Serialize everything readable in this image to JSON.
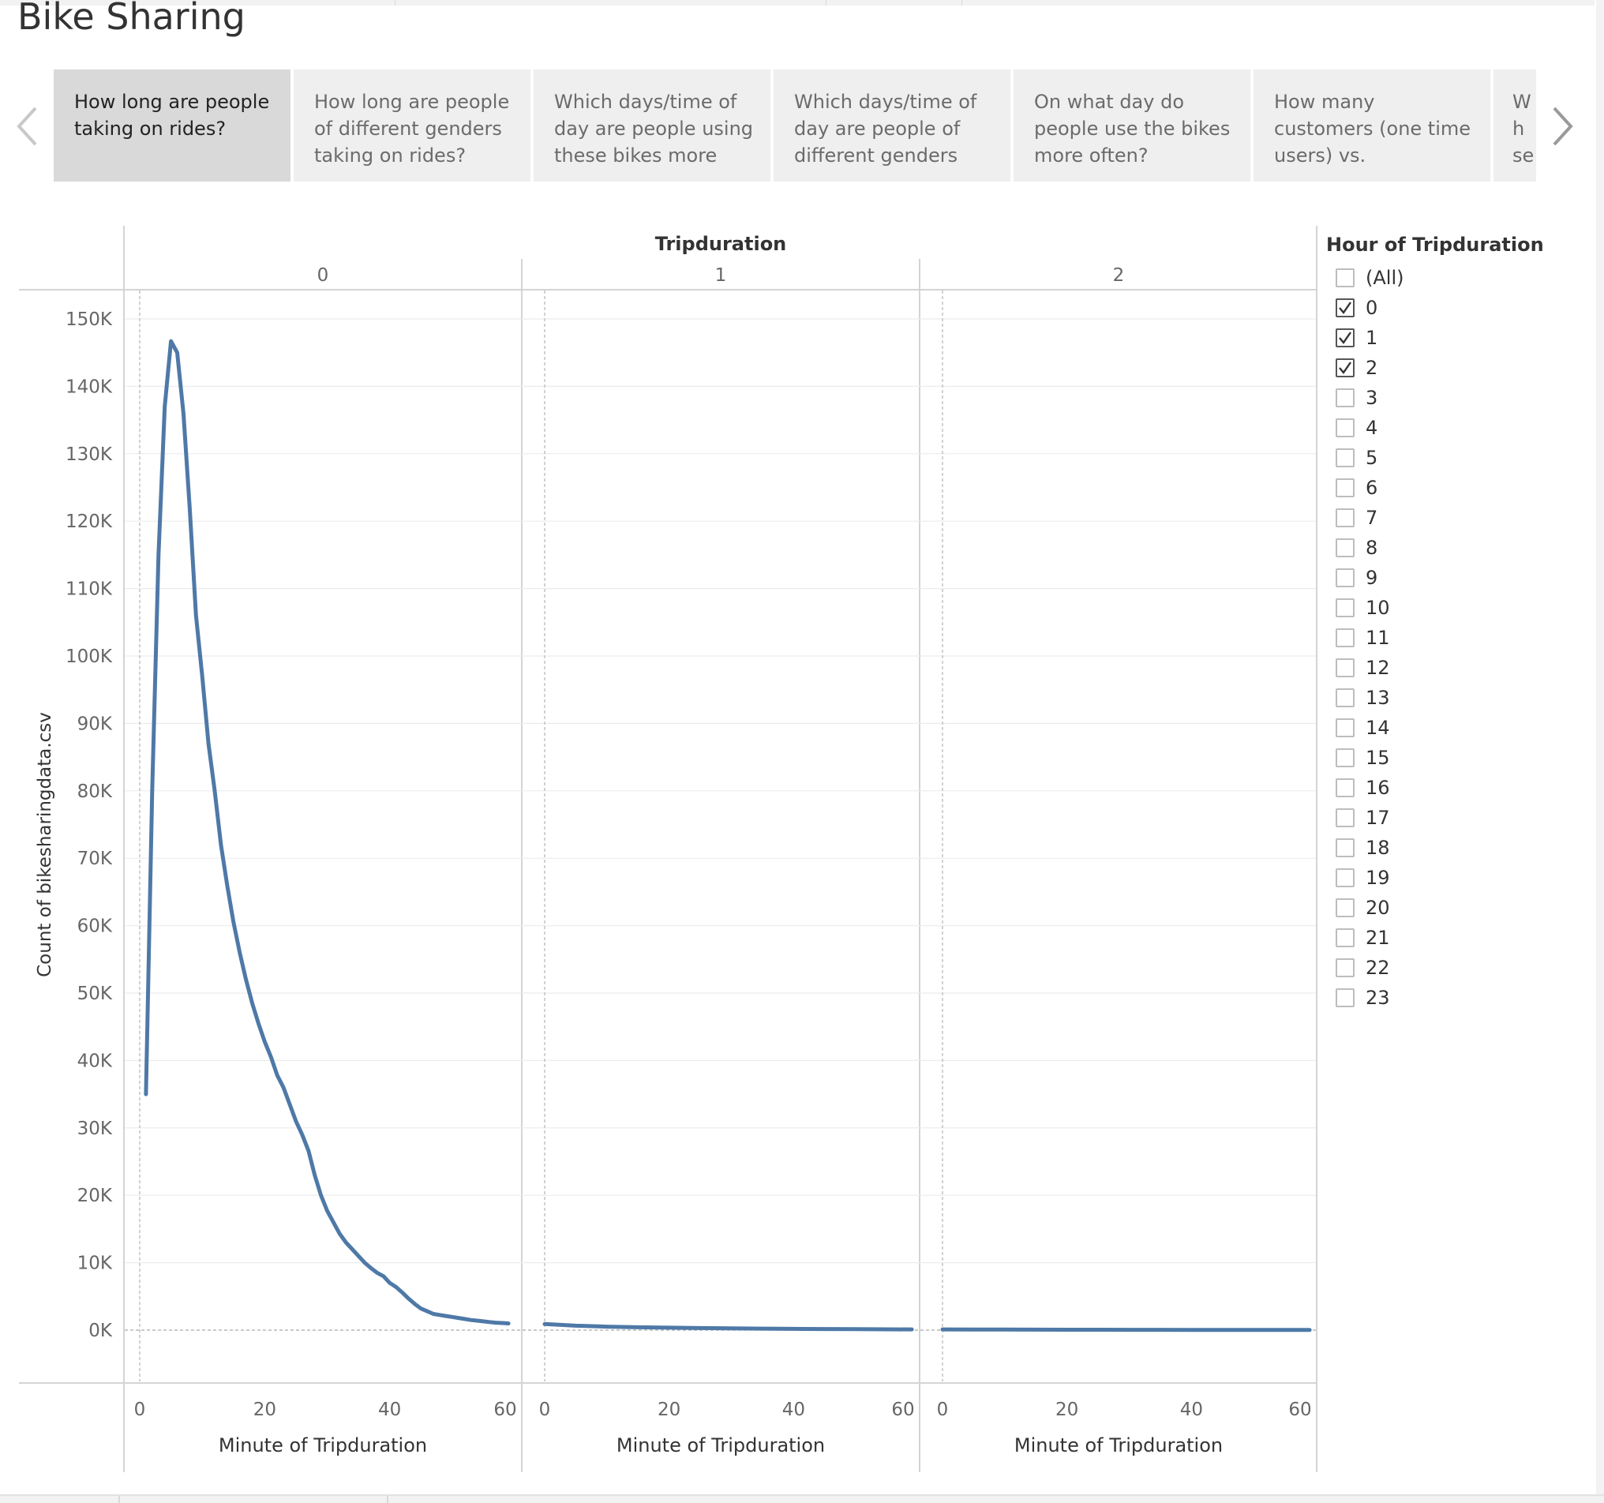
{
  "dashboard": {
    "title": "Bike Sharing",
    "tabs": [
      {
        "label": "How long are people taking on rides?",
        "active": true
      },
      {
        "label": "How long are people of different genders taking on rides?",
        "active": false
      },
      {
        "label": "Which days/time of day are people using these bikes more",
        "active": false
      },
      {
        "label": "Which days/time of day are people of different genders",
        "active": false
      },
      {
        "label": "On what day do people use the bikes more often?",
        "active": false
      },
      {
        "label": "How many customers (one time users) vs. subscribers (paying",
        "active": false
      },
      {
        "label": "Wh se ge",
        "active": false
      }
    ],
    "icons": {
      "prev": "chevron-left-icon",
      "next": "chevron-right-icon",
      "check": "checkmark-icon"
    }
  },
  "legend": {
    "title": "Hour of Tripduration",
    "items": [
      {
        "label": "(All)",
        "checked": false
      },
      {
        "label": "0",
        "checked": true
      },
      {
        "label": "1",
        "checked": true
      },
      {
        "label": "2",
        "checked": true
      },
      {
        "label": "3",
        "checked": false
      },
      {
        "label": "4",
        "checked": false
      },
      {
        "label": "5",
        "checked": false
      },
      {
        "label": "6",
        "checked": false
      },
      {
        "label": "7",
        "checked": false
      },
      {
        "label": "8",
        "checked": false
      },
      {
        "label": "9",
        "checked": false
      },
      {
        "label": "10",
        "checked": false
      },
      {
        "label": "11",
        "checked": false
      },
      {
        "label": "12",
        "checked": false
      },
      {
        "label": "13",
        "checked": false
      },
      {
        "label": "14",
        "checked": false
      },
      {
        "label": "15",
        "checked": false
      },
      {
        "label": "16",
        "checked": false
      },
      {
        "label": "17",
        "checked": false
      },
      {
        "label": "18",
        "checked": false
      },
      {
        "label": "19",
        "checked": false
      },
      {
        "label": "20",
        "checked": false
      },
      {
        "label": "21",
        "checked": false
      },
      {
        "label": "22",
        "checked": false
      },
      {
        "label": "23",
        "checked": false
      }
    ]
  },
  "chart_data": {
    "type": "line",
    "column_header": "Tripduration",
    "panel_labels": [
      "0",
      "1",
      "2"
    ],
    "xlabel": "Minute of Tripduration",
    "ylabel": "Count of bikesharingdata.csv",
    "xlim": [
      0,
      60
    ],
    "xticks": [
      0,
      20,
      40,
      60
    ],
    "ylim": [
      0,
      150000
    ],
    "yticks": [
      0,
      10000,
      20000,
      30000,
      40000,
      50000,
      60000,
      70000,
      80000,
      90000,
      100000,
      110000,
      120000,
      130000,
      140000,
      150000
    ],
    "yticklabels": [
      "0K",
      "10K",
      "20K",
      "30K",
      "40K",
      "50K",
      "60K",
      "70K",
      "80K",
      "90K",
      "100K",
      "110K",
      "120K",
      "130K",
      "140K",
      "150K"
    ],
    "grid": true,
    "color": "#4e79a7",
    "series": [
      {
        "panel": "0",
        "x": [
          1,
          2,
          3,
          4,
          5,
          6,
          7,
          8,
          9,
          10,
          11,
          12,
          13,
          14,
          15,
          16,
          17,
          18,
          19,
          20,
          21,
          22,
          23,
          24,
          25,
          26,
          27,
          28,
          29,
          30,
          31,
          32,
          33,
          34,
          35,
          36,
          37,
          38,
          39,
          40,
          41,
          42,
          43,
          44,
          45,
          46,
          47,
          48,
          49,
          50,
          51,
          52,
          53,
          54,
          55,
          56,
          57,
          58,
          59
        ],
        "values": [
          35000,
          80000,
          115000,
          137000,
          146700,
          145000,
          136000,
          122000,
          106000,
          97000,
          87000,
          80000,
          72000,
          66000,
          60500,
          56000,
          52000,
          48500,
          45500,
          42800,
          40500,
          37800,
          36000,
          33500,
          31000,
          29000,
          26600,
          23000,
          20000,
          17700,
          16000,
          14300,
          13000,
          12000,
          11000,
          10000,
          9200,
          8500,
          8000,
          7000,
          6400,
          5600,
          4700,
          3900,
          3200,
          2800,
          2400,
          2250,
          2100,
          1950,
          1800,
          1650,
          1500,
          1400,
          1300,
          1200,
          1100,
          1050,
          1000
        ]
      },
      {
        "panel": "1",
        "x": [
          0,
          5,
          10,
          15,
          20,
          25,
          30,
          35,
          40,
          45,
          50,
          55,
          59
        ],
        "values": [
          900,
          650,
          520,
          420,
          360,
          300,
          260,
          220,
          190,
          160,
          140,
          120,
          110
        ]
      },
      {
        "panel": "2",
        "x": [
          0,
          5,
          10,
          15,
          20,
          25,
          30,
          35,
          40,
          45,
          50,
          55,
          59
        ],
        "values": [
          100,
          90,
          80,
          70,
          60,
          55,
          50,
          45,
          40,
          35,
          32,
          30,
          28
        ]
      }
    ]
  }
}
